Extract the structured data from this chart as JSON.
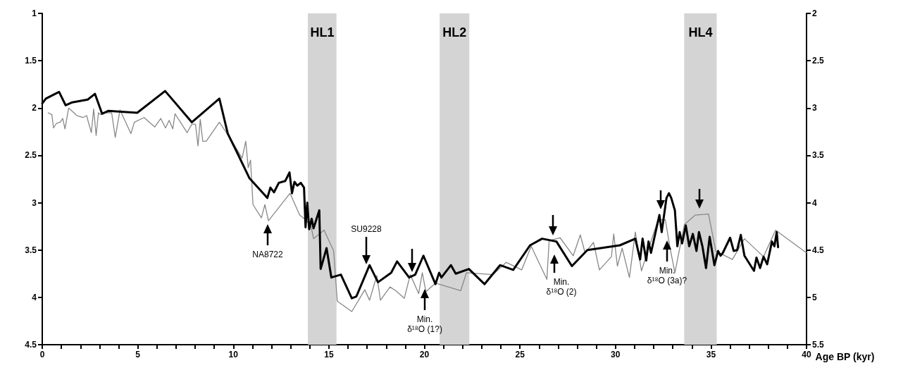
{
  "chart_data": {
    "type": "line",
    "xlabel": "Age BP (kyr)",
    "xlim": [
      0,
      40
    ],
    "xticks": [
      0,
      {
        "value": 1,
        "label": null
      },
      {
        "value": 2,
        "label": null
      },
      {
        "value": 3,
        "label": null
      },
      {
        "value": 4,
        "label": null
      },
      5,
      {
        "value": 6,
        "label": null
      },
      {
        "value": 7,
        "label": null
      },
      {
        "value": 8,
        "label": null
      },
      {
        "value": 9,
        "label": null
      },
      10,
      {
        "value": 11,
        "label": null
      },
      {
        "value": 12,
        "label": null
      },
      {
        "value": 13,
        "label": null
      },
      {
        "value": 14,
        "label": null
      },
      15,
      {
        "value": 16,
        "label": null
      },
      {
        "value": 17,
        "label": null
      },
      {
        "value": 18,
        "label": null
      },
      {
        "value": 19,
        "label": null
      },
      20,
      {
        "value": 21,
        "label": null
      },
      {
        "value": 22,
        "label": null
      },
      {
        "value": 23,
        "label": null
      },
      {
        "value": 24,
        "label": null
      },
      25,
      {
        "value": 26,
        "label": null
      },
      {
        "value": 27,
        "label": null
      },
      {
        "value": 28,
        "label": null
      },
      {
        "value": 29,
        "label": null
      },
      30,
      {
        "value": 31,
        "label": null
      },
      {
        "value": 32,
        "label": null
      },
      {
        "value": 33,
        "label": null
      },
      {
        "value": 34,
        "label": null
      },
      35,
      {
        "value": 36,
        "label": null
      },
      {
        "value": 37,
        "label": null
      },
      {
        "value": 38,
        "label": null
      },
      {
        "value": 39,
        "label": null
      },
      40
    ],
    "ylim": [
      4.5,
      1
    ],
    "yticks": [
      1,
      1.5,
      2,
      2.5,
      3,
      3.5,
      4,
      4.5
    ],
    "y2lim": [
      5.5,
      2
    ],
    "y2ticks": [
      2,
      2.5,
      3,
      3.5,
      4,
      4.5,
      5,
      5.5
    ],
    "grid": false,
    "marker": "none",
    "line_style": "solid",
    "series": [
      {
        "color": "#000000",
        "axis": "y",
        "x": [
          0,
          0.19,
          0.88,
          1.22,
          1.57,
          2.38,
          2.76,
          3.13,
          3.45,
          4.97,
          6.43,
          7.83,
          9.27,
          9.71,
          10.15,
          10.84,
          11.78,
          11.94,
          12.13,
          12.38,
          12.72,
          12.94,
          13.07,
          13.2,
          13.35,
          13.53,
          13.7,
          13.78,
          13.87,
          13.97,
          14.1,
          14.2,
          14.5,
          14.57,
          14.88,
          15.13,
          15.63,
          16.2,
          16.44,
          17.13,
          17.57,
          18.26,
          18.57,
          19.2,
          19.52,
          19.95,
          20.58,
          20.77,
          20.89,
          21.39,
          21.64,
          22.33,
          23.15,
          23.96,
          24.65,
          25.53,
          26.16,
          26.91,
          27.72,
          28.53,
          30.23,
          31.04,
          31.29,
          31.42,
          31.61,
          31.73,
          31.86,
          32.3,
          32.42,
          32.67,
          32.8,
          32.92,
          33.11,
          33.24,
          33.36,
          33.49,
          33.68,
          33.86,
          34.05,
          34.24,
          34.37,
          34.55,
          34.74,
          34.93,
          35.18,
          35.37,
          35.5,
          35.62,
          36.0,
          36.19,
          36.37,
          36.56,
          36.75,
          37.0,
          37.25,
          37.38,
          37.57,
          37.75,
          37.94,
          38.19,
          38.32,
          38.44,
          38.51
        ],
        "values": [
          1.95,
          1.9,
          1.83,
          1.97,
          1.94,
          1.91,
          1.85,
          2.06,
          2.03,
          2.05,
          1.82,
          2.15,
          1.9,
          2.27,
          2.45,
          2.74,
          2.95,
          2.84,
          2.89,
          2.79,
          2.77,
          2.68,
          2.9,
          2.78,
          2.82,
          2.79,
          2.84,
          3.26,
          3.0,
          3.28,
          3.17,
          3.27,
          3.08,
          3.7,
          3.48,
          3.79,
          3.76,
          4.01,
          3.99,
          3.66,
          3.84,
          3.74,
          3.62,
          3.79,
          3.76,
          3.56,
          3.86,
          3.74,
          3.79,
          3.66,
          3.75,
          3.7,
          3.86,
          3.66,
          3.71,
          3.45,
          3.38,
          3.41,
          3.67,
          3.5,
          3.45,
          3.38,
          3.6,
          3.38,
          3.61,
          3.41,
          3.53,
          3.13,
          3.31,
          2.95,
          2.9,
          2.95,
          3.08,
          3.46,
          3.31,
          3.43,
          3.24,
          3.46,
          3.33,
          3.51,
          3.31,
          3.46,
          3.69,
          3.36,
          3.66,
          3.51,
          3.56,
          3.53,
          3.37,
          3.51,
          3.5,
          3.34,
          3.56,
          3.64,
          3.72,
          3.58,
          3.69,
          3.57,
          3.65,
          3.41,
          3.46,
          3.31,
          3.47
        ]
      },
      {
        "color": "#888888",
        "axis": "y2",
        "x": [
          0.31,
          0.5,
          0.59,
          0.75,
          0.94,
          1.07,
          1.19,
          1.38,
          1.82,
          2.13,
          2.32,
          2.57,
          2.69,
          2.82,
          2.94,
          3.07,
          3.32,
          3.63,
          3.82,
          4.07,
          4.64,
          4.82,
          5.33,
          5.89,
          6.2,
          6.45,
          6.64,
          6.83,
          6.95,
          7.58,
          7.83,
          8.02,
          8.15,
          8.27,
          8.4,
          8.58,
          9.27,
          9.84,
          10.46,
          10.65,
          10.78,
          10.9,
          11.03,
          11.47,
          11.65,
          11.84,
          12.97,
          13.47,
          13.78,
          14.06,
          14.2,
          14.75,
          15.25,
          15.44,
          16.2,
          16.88,
          17.13,
          17.51,
          17.7,
          18.2,
          18.51,
          18.95,
          19.26,
          19.7,
          19.89,
          20.08,
          20.58,
          21.9,
          22.2,
          23.59,
          24.28,
          25.09,
          25.59,
          26.41,
          26.53,
          27.1,
          27.79,
          28.16,
          28.41,
          28.85,
          29.16,
          29.79,
          29.91,
          30.1,
          30.35,
          30.73,
          31.04,
          31.36,
          32.23,
          32.61,
          32.86,
          33.11,
          33.61,
          34.18,
          34.87,
          35.25,
          36.12,
          36.75,
          37.75,
          38.38,
          40
        ],
        "values": [
          3.05,
          3.07,
          3.21,
          3.16,
          3.15,
          3.11,
          3.22,
          3.0,
          3.08,
          3.1,
          3.08,
          3.26,
          3.01,
          3.29,
          3.05,
          3.07,
          3.05,
          3.05,
          3.31,
          3.02,
          3.27,
          3.15,
          3.1,
          3.2,
          3.11,
          3.21,
          3.13,
          3.22,
          3.06,
          3.26,
          3.17,
          3.17,
          3.4,
          3.12,
          3.35,
          3.35,
          3.15,
          3.32,
          3.53,
          3.35,
          3.63,
          3.55,
          4.02,
          4.16,
          4.02,
          4.19,
          3.9,
          4.13,
          4.18,
          4.24,
          4.38,
          4.29,
          4.51,
          5.04,
          5.15,
          4.92,
          5.03,
          4.77,
          5.03,
          4.89,
          4.93,
          5.01,
          4.76,
          4.96,
          4.74,
          4.94,
          4.85,
          4.93,
          4.74,
          4.76,
          4.63,
          4.71,
          4.46,
          4.81,
          4.4,
          4.37,
          4.56,
          4.34,
          4.53,
          4.42,
          4.71,
          4.57,
          4.33,
          4.67,
          4.48,
          4.79,
          4.31,
          4.72,
          4.18,
          4.18,
          4.48,
          4.74,
          4.23,
          4.13,
          4.12,
          4.51,
          4.6,
          4.38,
          4.57,
          4.29,
          4.53
        ]
      }
    ],
    "bands": [
      {
        "axis": "x",
        "from": 13.9,
        "to": 15.4,
        "label": "HL1",
        "color": "#d4d4d4"
      },
      {
        "axis": "x",
        "from": 20.8,
        "to": 22.35,
        "label": "HL2",
        "color": "#d4d4d4"
      },
      {
        "axis": "x",
        "from": 33.6,
        "to": 35.3,
        "label": "HL4",
        "color": "#d4d4d4"
      }
    ],
    "annotations": [
      "NA8722",
      "SU9228",
      "Min.\nδ¹⁸O (1?)",
      "Min.\nδ¹⁸O (2)",
      "Min.\nδ¹⁸O (3a)?"
    ]
  }
}
